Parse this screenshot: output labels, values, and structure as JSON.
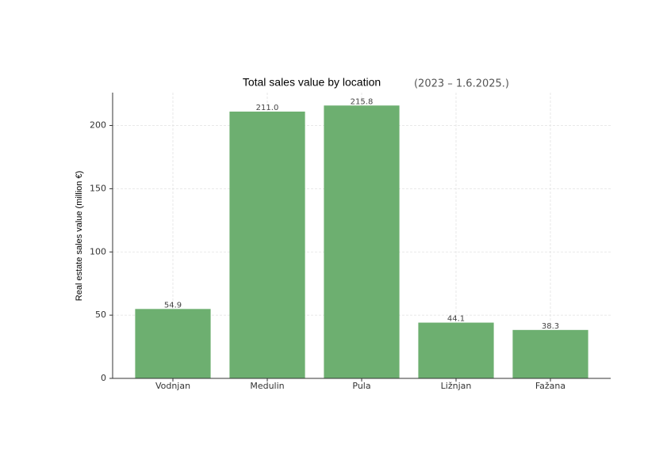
{
  "chart_data": {
    "type": "bar",
    "title": "Total sales value by location",
    "subtitle": "(2023 – 1.6.2025.)",
    "y_label": "Real estate sales value (million €)",
    "categories": [
      "Vodnjan",
      "Medulin",
      "Pula",
      "Ližnjan",
      "Fažana"
    ],
    "values": [
      54.9,
      211.0,
      215.8,
      44.1,
      38.3
    ],
    "value_labels": [
      "54.9",
      "211.0",
      "215.8",
      "44.1",
      "38.3"
    ],
    "color": "#6daf70",
    "ylim": [
      0,
      226
    ],
    "yticks": [
      0,
      50,
      100,
      150,
      200
    ],
    "grid": true
  }
}
